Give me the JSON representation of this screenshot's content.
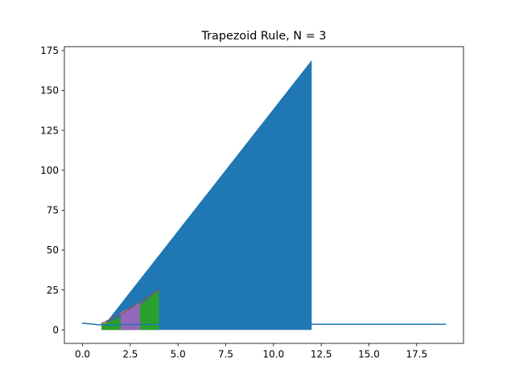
{
  "chart_data": {
    "type": "area",
    "title": "Trapezoid Rule, N = 3",
    "xlabel": "",
    "ylabel": "",
    "xlim": [
      -0.95,
      19.95
    ],
    "ylim": [
      -8.45,
      177.45
    ],
    "xticks": [
      0.0,
      2.5,
      5.0,
      7.5,
      10.0,
      12.5,
      15.0,
      17.5
    ],
    "xtick_labels": [
      "0.0",
      "2.5",
      "5.0",
      "7.5",
      "10.0",
      "12.5",
      "15.0",
      "17.5"
    ],
    "yticks": [
      0,
      25,
      50,
      75,
      100,
      125,
      150,
      175
    ],
    "ytick_labels": [
      "0",
      "25",
      "50",
      "75",
      "100",
      "125",
      "150",
      "175"
    ],
    "grid": false,
    "colors": {
      "blue": "#1f77b4",
      "red": "#d62728",
      "green": "#2ca02c",
      "purple": "#9467bd",
      "brown": "#8c564b",
      "pink": "#e377c2",
      "orange": "#ff7f0e"
    },
    "series": [
      {
        "type": "line",
        "color": "#1f77b4",
        "x": [
          0,
          1,
          2,
          3,
          4,
          5,
          6,
          7,
          8,
          9,
          10,
          11,
          12,
          13,
          14,
          15,
          16,
          17,
          18,
          19
        ],
        "y": [
          4.2,
          3.1,
          3.3,
          3.4,
          3.4,
          3.4,
          3.4,
          3.4,
          3.4,
          3.4,
          3.4,
          3.4,
          3.5,
          3.5,
          3.5,
          3.5,
          3.5,
          3.5,
          3.5,
          3.5
        ]
      },
      {
        "type": "trapezoid",
        "color": "#1f77b4",
        "x": [
          1,
          12
        ],
        "y": [
          1,
          169
        ]
      },
      {
        "type": "trapezoid",
        "color": "#d62728",
        "x": [
          1,
          2.5
        ],
        "y": [
          3.5,
          10
        ]
      },
      {
        "type": "trapezoid",
        "color": "#2ca02c",
        "x": [
          1,
          2.5,
          4
        ],
        "y": [
          3.5,
          10,
          25
        ]
      },
      {
        "type": "trapezoid",
        "color": "#9467bd",
        "x": [
          2,
          2.25,
          2.5,
          2.75,
          3
        ],
        "y": [
          10,
          11.5,
          13,
          14.5,
          16
        ]
      },
      {
        "type": "line",
        "color": "#e377c2",
        "x": [
          2,
          2.5,
          3
        ],
        "y": [
          10.5,
          13.5,
          16.5
        ]
      },
      {
        "type": "line",
        "color": "#8c564b",
        "x": [
          1,
          2,
          3,
          4
        ],
        "y": [
          4,
          10,
          17,
          25
        ]
      }
    ]
  }
}
